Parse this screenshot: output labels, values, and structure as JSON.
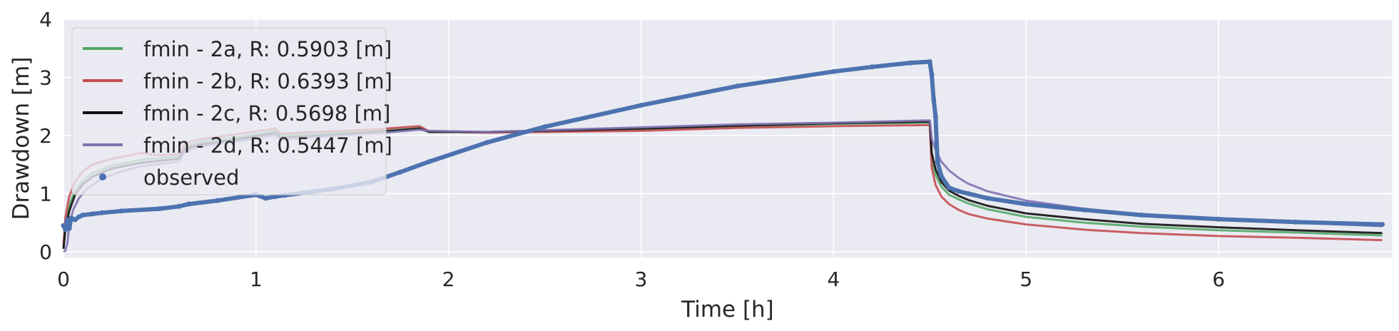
{
  "chart_data": {
    "type": "line",
    "xlabel": "Time [h]",
    "ylabel": "Drawdown [m]",
    "xlim": [
      0,
      6.9
    ],
    "ylim": [
      -0.1,
      4.0
    ],
    "xticks": [
      0,
      1,
      2,
      3,
      4,
      5,
      6
    ],
    "yticks": [
      0,
      1,
      2,
      3,
      4
    ],
    "grid": true,
    "legend_position": "upper-left",
    "colors": {
      "background": "#eaeaf2",
      "grid": "#ffffff",
      "observed": "#4c72b0",
      "fmin_2a": "#55a868",
      "fmin_2b": "#c44e52",
      "fmin_2c": "#111111",
      "fmin_2d": "#8172b3"
    },
    "series": [
      {
        "name": "fmin - 2a, R: 0.5903 [m]",
        "color": "#55a868",
        "x": [
          0.0,
          0.01,
          0.03,
          0.06,
          0.1,
          0.15,
          0.25,
          0.4,
          0.6,
          0.63,
          0.7,
          0.9,
          1.0,
          1.1,
          1.13,
          1.3,
          1.6,
          1.85,
          1.9,
          2.2,
          3.0,
          3.5,
          4.0,
          4.5,
          4.51,
          4.53,
          4.56,
          4.6,
          4.65,
          4.7,
          4.8,
          5.0,
          5.3,
          5.6,
          6.0,
          6.4,
          6.85
        ],
        "y": [
          0.05,
          0.5,
          0.8,
          1.05,
          1.22,
          1.35,
          1.48,
          1.58,
          1.64,
          1.8,
          1.88,
          1.97,
          2.02,
          2.08,
          1.99,
          2.02,
          2.07,
          2.13,
          2.07,
          2.05,
          2.1,
          2.15,
          2.2,
          2.22,
          1.6,
          1.32,
          1.12,
          0.98,
          0.9,
          0.83,
          0.73,
          0.6,
          0.5,
          0.43,
          0.37,
          0.33,
          0.28
        ]
      },
      {
        "name": "fmin - 2b, R: 0.6393 [m]",
        "color": "#c44e52",
        "x": [
          0.0,
          0.01,
          0.03,
          0.06,
          0.1,
          0.15,
          0.25,
          0.35,
          0.4,
          0.5,
          0.6,
          0.63,
          0.7,
          0.9,
          1.0,
          1.1,
          1.13,
          1.3,
          1.6,
          1.85,
          1.9,
          2.2,
          3.0,
          3.5,
          4.0,
          4.5,
          4.51,
          4.53,
          4.56,
          4.6,
          4.65,
          4.7,
          4.8,
          5.0,
          5.3,
          5.6,
          6.0,
          6.4,
          6.85
        ],
        "y": [
          0.1,
          0.6,
          0.95,
          1.2,
          1.38,
          1.5,
          1.6,
          1.66,
          1.7,
          1.66,
          1.68,
          1.86,
          1.93,
          2.02,
          2.07,
          2.12,
          2.03,
          2.06,
          2.1,
          2.16,
          2.07,
          2.05,
          2.08,
          2.13,
          2.16,
          2.18,
          1.45,
          1.15,
          0.95,
          0.82,
          0.72,
          0.65,
          0.57,
          0.47,
          0.38,
          0.32,
          0.27,
          0.24,
          0.2
        ]
      },
      {
        "name": "fmin - 2c, R: 0.5698 [m]",
        "color": "#111111",
        "x": [
          0.0,
          0.01,
          0.03,
          0.06,
          0.1,
          0.15,
          0.25,
          0.4,
          0.6,
          0.63,
          0.7,
          0.9,
          1.0,
          1.1,
          1.13,
          1.3,
          1.6,
          1.85,
          1.9,
          2.2,
          3.0,
          3.5,
          4.0,
          4.5,
          4.51,
          4.53,
          4.56,
          4.6,
          4.65,
          4.7,
          4.8,
          5.0,
          5.3,
          5.6,
          6.0,
          6.4,
          6.85
        ],
        "y": [
          0.05,
          0.4,
          0.7,
          0.98,
          1.16,
          1.29,
          1.43,
          1.53,
          1.6,
          1.76,
          1.84,
          1.93,
          1.99,
          2.04,
          1.96,
          1.99,
          2.05,
          2.12,
          2.06,
          2.06,
          2.12,
          2.17,
          2.21,
          2.24,
          1.7,
          1.42,
          1.2,
          1.05,
          0.96,
          0.89,
          0.79,
          0.66,
          0.56,
          0.48,
          0.42,
          0.37,
          0.32
        ]
      },
      {
        "name": "fmin - 2d, R: 0.5447 [m]",
        "color": "#8172b3",
        "x": [
          0.0,
          0.01,
          0.02,
          0.03,
          0.05,
          0.08,
          0.12,
          0.2,
          0.3,
          0.4,
          0.6,
          0.63,
          0.7,
          0.9,
          1.0,
          1.1,
          1.13,
          1.3,
          1.6,
          1.85,
          1.9,
          2.2,
          3.0,
          3.5,
          4.0,
          4.5,
          4.51,
          4.53,
          4.56,
          4.6,
          4.65,
          4.7,
          4.8,
          5.0,
          5.3,
          5.6,
          6.0,
          6.4,
          6.85
        ],
        "y": [
          0.0,
          0.02,
          0.15,
          0.45,
          0.72,
          0.92,
          1.08,
          1.26,
          1.38,
          1.47,
          1.55,
          1.72,
          1.8,
          1.9,
          1.95,
          2.01,
          1.93,
          1.97,
          2.03,
          2.1,
          2.08,
          2.06,
          2.14,
          2.19,
          2.22,
          2.26,
          1.95,
          1.75,
          1.55,
          1.4,
          1.27,
          1.17,
          1.04,
          0.88,
          0.74,
          0.64,
          0.56,
          0.5,
          0.44
        ]
      },
      {
        "name": "observed",
        "color": "#4c72b0",
        "x": [
          0.0,
          0.01,
          0.02,
          0.03,
          0.04,
          0.06,
          0.08,
          0.1,
          0.15,
          0.2,
          0.3,
          0.5,
          0.6,
          0.65,
          0.8,
          1.0,
          1.05,
          1.1,
          1.15,
          1.4,
          1.6,
          1.75,
          1.9,
          2.2,
          2.5,
          3.0,
          3.5,
          4.0,
          4.2,
          4.4,
          4.5,
          4.51,
          4.52,
          4.53,
          4.54,
          4.56,
          4.6,
          4.65,
          4.7,
          4.8,
          5.0,
          5.3,
          5.6,
          6.0,
          6.4,
          6.85
        ],
        "y": [
          0.45,
          0.38,
          0.55,
          0.4,
          0.58,
          0.55,
          0.6,
          0.63,
          0.65,
          0.67,
          0.7,
          0.74,
          0.78,
          0.82,
          0.88,
          0.98,
          0.92,
          0.95,
          0.97,
          1.08,
          1.2,
          1.37,
          1.55,
          1.88,
          2.15,
          2.52,
          2.85,
          3.1,
          3.18,
          3.25,
          3.27,
          3.05,
          2.62,
          2.33,
          1.55,
          1.3,
          1.1,
          1.04,
          1.0,
          0.92,
          0.82,
          0.72,
          0.63,
          0.56,
          0.51,
          0.47
        ]
      }
    ]
  }
}
